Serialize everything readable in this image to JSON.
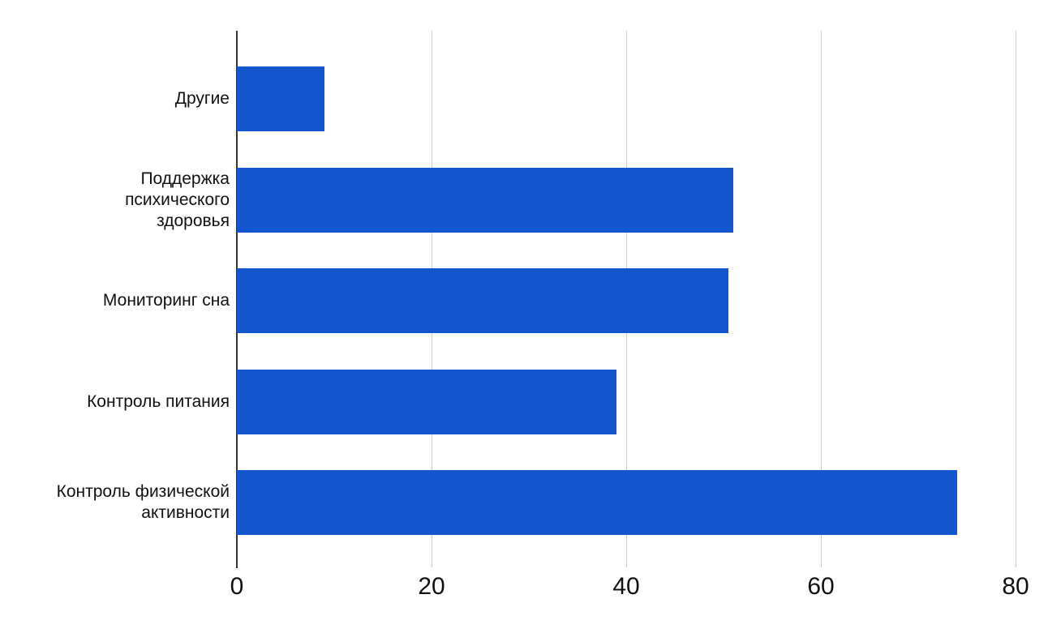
{
  "chart_data": {
    "type": "bar",
    "orientation": "horizontal",
    "title": "",
    "xlabel": "",
    "ylabel": "",
    "legend": "none",
    "grid": true,
    "xlim": [
      0,
      80
    ],
    "x_ticks": [
      0,
      20,
      40,
      60,
      80
    ],
    "categories": [
      "Другие",
      "Поддержка психического здоровья",
      "Мониторинг сна",
      "Контроль питания",
      "Контроль физической активности"
    ],
    "category_label_lines": [
      [
        "Другие"
      ],
      [
        "Поддержка",
        "психического",
        "здоровья"
      ],
      [
        "Мониторинг сна"
      ],
      [
        "Контроль питания"
      ],
      [
        "Контроль физической",
        "активности"
      ]
    ],
    "values": [
      9,
      51,
      50.5,
      39,
      74
    ],
    "colors": {
      "bar": "#1356cd",
      "gridline": "#cfcfcf",
      "axis": "#333333",
      "text": "#111111",
      "background": "#ffffff"
    }
  }
}
